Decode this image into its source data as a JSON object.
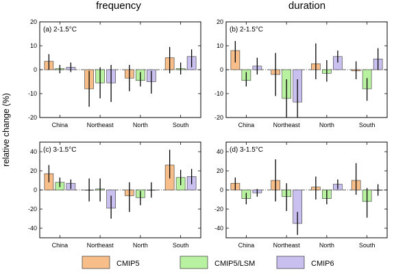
{
  "figure": {
    "column_titles": [
      "frequency",
      "duration"
    ],
    "ylabel": "relative change (%)"
  },
  "legend": [
    {
      "name": "CMIP5",
      "color": "#F8BE8A"
    },
    {
      "name": "CMIP5/LSM",
      "color": "#B8F2A0"
    },
    {
      "name": "CMIP6",
      "color": "#C9C0F0"
    }
  ],
  "chart_data": [
    {
      "type": "bar",
      "panel_label": "(a) 2-1.5°C",
      "categories": [
        "China",
        "Northeast",
        "North",
        "South"
      ],
      "ylim": [
        -20,
        20
      ],
      "yticks": [
        -20,
        -10,
        0,
        10,
        20
      ],
      "grid": false,
      "series": [
        {
          "name": "CMIP5",
          "values": [
            3.5,
            -8,
            -3.5,
            5
          ],
          "err_low": [
            0,
            -15.5,
            -9,
            -1.5
          ],
          "err_high": [
            6.5,
            -0.5,
            2,
            9.5
          ]
        },
        {
          "name": "CMIP5/LSM",
          "values": [
            0.5,
            -5.5,
            -4.5,
            0.5
          ],
          "err_low": [
            -1.5,
            -12,
            -7,
            -2
          ],
          "err_high": [
            2,
            1,
            -1,
            3
          ]
        },
        {
          "name": "CMIP6",
          "values": [
            1,
            -5.5,
            -5,
            5.5
          ],
          "err_low": [
            -1,
            -13.5,
            -10,
            1
          ],
          "err_high": [
            3,
            2,
            -0.5,
            8.5
          ]
        }
      ]
    },
    {
      "type": "bar",
      "panel_label": "(b) 2-1.5°C",
      "categories": [
        "China",
        "Northeast",
        "North",
        "South"
      ],
      "ylim": [
        -20,
        20
      ],
      "yticks": [
        -20,
        -10,
        0,
        10,
        20
      ],
      "grid": false,
      "series": [
        {
          "name": "CMIP5",
          "values": [
            8,
            -2,
            2.5,
            -0.5
          ],
          "err_low": [
            3,
            -11,
            -4,
            -4
          ],
          "err_high": [
            12,
            7,
            11,
            3.5
          ]
        },
        {
          "name": "CMIP5/LSM",
          "values": [
            -4.5,
            -12,
            -1.5,
            -8
          ],
          "err_low": [
            -7,
            -20,
            -5,
            -13
          ],
          "err_high": [
            -1,
            -4,
            4,
            -3.5
          ]
        },
        {
          "name": "CMIP6",
          "values": [
            1.5,
            -13.5,
            5.5,
            4.5
          ],
          "err_low": [
            -2,
            -20,
            3,
            0
          ],
          "err_high": [
            5,
            -4,
            8,
            9
          ]
        }
      ]
    },
    {
      "type": "bar",
      "panel_label": "(c) 3-1.5°C",
      "categories": [
        "China",
        "Northeast",
        "North",
        "South"
      ],
      "ylim": [
        -50,
        50
      ],
      "yticks": [
        -40,
        -20,
        0,
        20,
        40
      ],
      "grid": false,
      "series": [
        {
          "name": "CMIP5",
          "values": [
            17,
            0,
            -6,
            26
          ],
          "err_low": [
            8,
            -12,
            -23,
            12
          ],
          "err_high": [
            26,
            12,
            8,
            42
          ]
        },
        {
          "name": "CMIP5/LSM",
          "values": [
            8,
            1,
            -8,
            13
          ],
          "err_low": [
            3,
            -12,
            -16,
            5
          ],
          "err_high": [
            13,
            12,
            -1,
            21
          ]
        },
        {
          "name": "CMIP6",
          "values": [
            7,
            -19,
            0,
            14
          ],
          "err_low": [
            1,
            -30,
            -8,
            6
          ],
          "err_high": [
            11,
            -6,
            8,
            22
          ]
        }
      ]
    },
    {
      "type": "bar",
      "panel_label": "(d) 3-1.5°C",
      "categories": [
        "China",
        "Northeast",
        "North",
        "South"
      ],
      "ylim": [
        -50,
        50
      ],
      "yticks": [
        -40,
        -20,
        0,
        20,
        40
      ],
      "grid": false,
      "series": [
        {
          "name": "CMIP5",
          "values": [
            7,
            10,
            3,
            10
          ],
          "err_low": [
            0,
            -12,
            -10,
            -5
          ],
          "err_high": [
            13,
            32,
            14,
            28
          ]
        },
        {
          "name": "CMIP5/LSM",
          "values": [
            -9,
            -7,
            -9,
            -12
          ],
          "err_low": [
            -15,
            -22,
            -15,
            -29
          ],
          "err_high": [
            -3,
            7,
            0,
            2
          ]
        },
        {
          "name": "CMIP6",
          "values": [
            -3,
            -35,
            6,
            0
          ],
          "err_low": [
            -7,
            -47,
            1,
            -6
          ],
          "err_high": [
            1,
            -23,
            11,
            6
          ]
        }
      ]
    }
  ]
}
